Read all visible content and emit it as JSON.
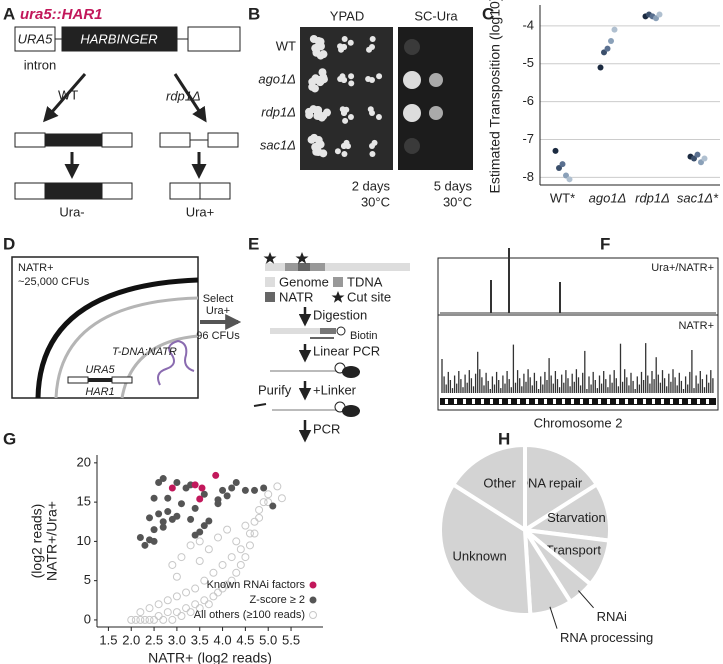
{
  "panel_labels": [
    "A",
    "B",
    "C",
    "D",
    "E",
    "F",
    "G",
    "H"
  ],
  "panel_a": {
    "title": "ura5::HAR1",
    "exon": "URA5",
    "transposon": "HARBINGER",
    "intron": "intron",
    "left_arrow": "WT",
    "right_arrow": "rdp1Δ",
    "left_result": "Ura-",
    "right_result": "Ura+"
  },
  "panel_b": {
    "columns": [
      "YPAD",
      "SC-Ura"
    ],
    "rows": [
      "WT",
      "ago1Δ",
      "rdp1Δ",
      "sac1Δ"
    ],
    "conditions": [
      {
        "time": "2 days",
        "temp": "30°C"
      },
      {
        "time": "5 days",
        "temp": "30°C"
      }
    ]
  },
  "panel_d": {
    "population": "NATR+",
    "count": "~25,000 CFUs",
    "select": "Select",
    "selection": "Ura+",
    "selected": "96 CFUs",
    "insert": "T-DNA:NATR",
    "gene": "URA5",
    "transposon": "HAR1"
  },
  "panel_e": {
    "legend": [
      "Genome",
      "TDNA",
      "NATR",
      "Cut site"
    ],
    "steps": [
      "Digestion",
      "Linear PCR",
      "+Linker",
      "PCR"
    ],
    "biotin": "Biotin",
    "purify": "Purify"
  },
  "panel_f": {
    "tracks": [
      "Ura+/NATR+",
      "NATR+"
    ],
    "xlabel": "Chromosome 2"
  },
  "chart_data": [
    {
      "type": "scatter",
      "ylabel": "Estimated Transposition (log10)",
      "categories": [
        "WT*",
        "ago1Δ",
        "rdp1Δ",
        "sac1Δ*"
      ],
      "series": [
        {
          "color": "#1b2a40",
          "values": [
            -7.3,
            -5.1,
            -3.75,
            -7.45
          ]
        },
        {
          "color": "#3b4f6b",
          "values": [
            -7.75,
            -4.7,
            -3.7,
            -7.5
          ]
        },
        {
          "color": "#5a7090",
          "values": [
            -7.65,
            -4.6,
            -3.75,
            -7.4
          ]
        },
        {
          "color": "#8aa0b8",
          "values": [
            -7.95,
            -4.4,
            -3.8,
            -7.6
          ]
        },
        {
          "color": "#b0c0d0",
          "values": [
            -8.05,
            -4.1,
            -3.7,
            -7.5
          ]
        }
      ],
      "ylim": [
        -8.2,
        -3.45
      ],
      "yticks": [
        -8,
        -7,
        -6,
        -5,
        -4
      ],
      "grid": true
    },
    {
      "type": "scatter",
      "xlabel": "NATR+ (log2 reads)",
      "ylabel": [
        "NATR+/Ura+",
        "(log2 reads)"
      ],
      "series": [
        {
          "name": "All others (≥100 reads)",
          "color": "#c8c8c8",
          "filled": false,
          "x": [
            2.0,
            2.1,
            2.2,
            2.3,
            2.4,
            2.5,
            2.6,
            2.7,
            2.8,
            2.9,
            3.0,
            3.1,
            3.2,
            3.3,
            3.4,
            3.5,
            3.6,
            3.7,
            3.8,
            3.9,
            4.0,
            4.1,
            4.2,
            4.3,
            4.4,
            4.5,
            4.6,
            4.7,
            4.8,
            4.9,
            5.0,
            5.2,
            2.2,
            2.4,
            2.6,
            2.8,
            3.0,
            3.2,
            3.4,
            3.6,
            3.8,
            4.0,
            4.2,
            4.4,
            4.6,
            2.9,
            3.1,
            3.3,
            3.5,
            3.7,
            3.9,
            4.1,
            4.3,
            4.5,
            4.7,
            4.8,
            5.0,
            5.3,
            3.0,
            3.5
          ],
          "values": [
            0,
            0,
            0,
            0,
            0,
            0,
            0.5,
            0,
            1,
            0,
            1,
            0.5,
            1.5,
            1,
            2,
            1.5,
            2.5,
            2,
            3,
            3.5,
            4,
            4.5,
            5,
            6,
            7,
            8,
            9.5,
            11,
            13,
            15,
            16,
            17,
            1,
            1.5,
            2,
            2.5,
            3,
            3.5,
            4,
            5,
            6,
            7,
            8,
            9,
            11,
            7,
            8,
            9.5,
            10,
            9,
            10.5,
            11.5,
            10,
            12,
            12.5,
            14,
            15,
            15.5,
            5.5,
            7.5
          ]
        },
        {
          "name": "Z-score ≥ 2",
          "color": "#555555",
          "filled": true,
          "x": [
            2.6,
            2.7,
            3.0,
            3.2,
            3.3,
            4.0,
            4.2,
            4.3,
            4.5,
            4.7,
            4.9,
            2.5,
            2.8,
            3.1,
            3.4,
            3.6,
            3.9,
            4.1,
            2.4,
            2.6,
            2.7,
            2.8,
            2.9,
            3.0,
            3.3,
            3.5,
            3.7,
            2.5,
            2.7,
            3.6,
            2.2,
            2.4,
            2.5,
            2.3,
            3.4,
            3.9,
            5.1
          ],
          "values": [
            17.5,
            18,
            17.5,
            16.8,
            17.2,
            16.5,
            16.8,
            17.5,
            16.5,
            16.5,
            16.8,
            15.5,
            15.5,
            14.8,
            14.2,
            16,
            15.3,
            15.8,
            13,
            13.5,
            12.5,
            13.8,
            12.8,
            13.2,
            12.8,
            11.2,
            12.6,
            11.5,
            11.8,
            12,
            10.5,
            10.2,
            10,
            9.5,
            10.8,
            14.8,
            14.5
          ]
        },
        {
          "name": "Known RNAi factors",
          "color": "#c2185b",
          "filled": true,
          "x": [
            2.9,
            3.4,
            3.55,
            3.5,
            3.85
          ],
          "values": [
            16.8,
            17.2,
            16.8,
            15.4,
            18.4
          ]
        }
      ],
      "xlim": [
        1.25,
        6.2
      ],
      "xticks": [
        1.5,
        {
          "value": 2,
          "label": "2.0"
        },
        2.5,
        {
          "value": 3,
          "label": "3.0"
        },
        3.5,
        {
          "value": 4,
          "label": "4.0"
        },
        4.5,
        {
          "value": 5,
          "label": "5.0"
        },
        5.5
      ],
      "ylim": [
        -0.9,
        21
      ],
      "yticks": [
        0,
        5,
        10,
        15,
        20
      ],
      "legend": "lower right"
    },
    {
      "type": "pie",
      "categories": [
        "DNA repair",
        "Starvation",
        "Transport",
        "RNAi",
        "RNA processing",
        "Unknown",
        "Other"
      ],
      "values": [
        16,
        11,
        9,
        5,
        8,
        35,
        16
      ],
      "color": "#d3d3d3"
    }
  ]
}
